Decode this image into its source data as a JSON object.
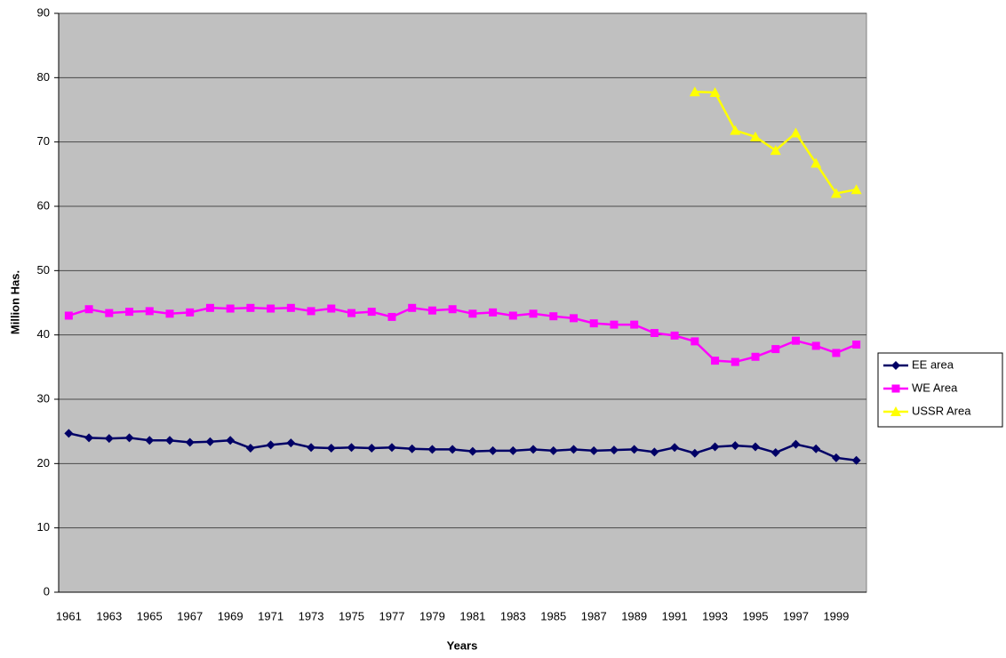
{
  "chart_data": {
    "type": "line",
    "y_label": "Million Has.",
    "x_label": "Years",
    "categories": [
      "1961",
      null,
      "1963",
      null,
      "1965",
      null,
      "1967",
      null,
      "1969",
      null,
      "1971",
      null,
      "1973",
      null,
      "1975",
      null,
      "1977",
      null,
      "1979",
      null,
      "1981",
      null,
      "1983",
      null,
      "1985",
      null,
      "1987",
      null,
      "1989",
      null,
      "1991",
      null,
      "1993",
      null,
      "1995",
      null,
      "1997",
      null,
      "1999",
      null
    ],
    "series": [
      {
        "name": "EE area",
        "color": "#000066",
        "marker": "diamond",
        "values": [
          24.7,
          24.0,
          23.9,
          24.0,
          23.6,
          23.6,
          23.3,
          23.4,
          23.6,
          22.4,
          22.9,
          23.2,
          22.5,
          22.4,
          22.5,
          22.4,
          22.5,
          22.3,
          22.2,
          22.2,
          21.9,
          22.0,
          22.0,
          22.2,
          22.0,
          22.2,
          22.0,
          22.1,
          22.2,
          21.8,
          22.5,
          21.6,
          22.6,
          22.8,
          22.6,
          21.7,
          23.0,
          22.3,
          20.9,
          20.5
        ]
      },
      {
        "name": "WE Area",
        "color": "#ff00ff",
        "marker": "square",
        "values": [
          43.0,
          44.0,
          43.4,
          43.6,
          43.7,
          43.3,
          43.5,
          44.2,
          44.1,
          44.2,
          44.1,
          44.2,
          43.7,
          44.1,
          43.4,
          43.6,
          42.8,
          44.2,
          43.8,
          44.0,
          43.3,
          43.5,
          43.0,
          43.3,
          42.9,
          42.6,
          41.8,
          41.6,
          41.6,
          40.3,
          39.9,
          39.0,
          36.0,
          35.8,
          36.6,
          37.8,
          39.1,
          38.3,
          37.2,
          38.5
        ]
      },
      {
        "name": "USSR Area",
        "color": "#ffff00",
        "marker": "triangle",
        "values": [
          null,
          null,
          null,
          null,
          null,
          null,
          null,
          null,
          null,
          null,
          null,
          null,
          null,
          null,
          null,
          null,
          null,
          null,
          null,
          null,
          null,
          null,
          null,
          null,
          null,
          null,
          null,
          null,
          null,
          null,
          null,
          77.8,
          77.7,
          71.8,
          70.8,
          68.7,
          71.4,
          66.7,
          62.0,
          62.6
        ]
      }
    ],
    "ylim": [
      0,
      90
    ],
    "yticks": [
      0,
      10,
      20,
      30,
      40,
      50,
      60,
      70,
      80,
      90
    ],
    "grid": true,
    "plot_background": "#c0c0c0",
    "legend_position": "right"
  }
}
